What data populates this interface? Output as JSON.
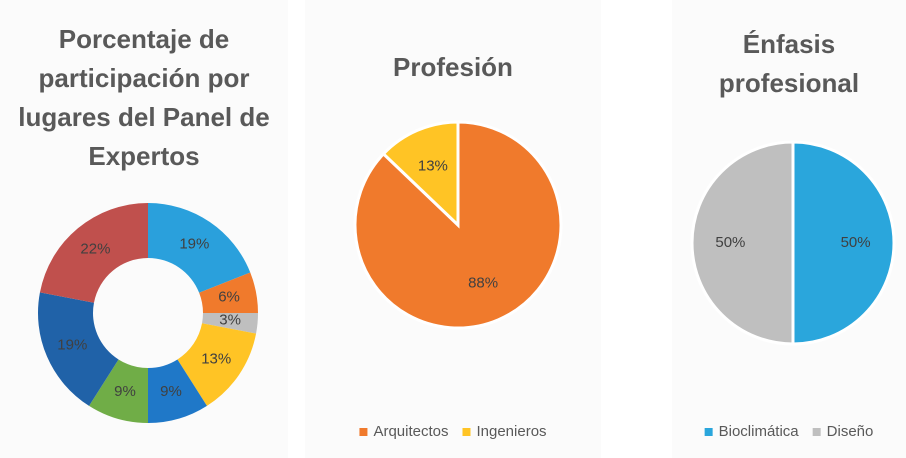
{
  "chart_data": [
    {
      "type": "doughnut",
      "title": "Porcentaje de participación por lugares del Panel de Expertos",
      "values": [
        19,
        6,
        3,
        13,
        9,
        9,
        19,
        22
      ],
      "value_labels": [
        "19%",
        "6%",
        "3%",
        "13%",
        "9%",
        "9%",
        "19%",
        "22%"
      ],
      "colors": [
        "#2aa0dc",
        "#f07a2c",
        "#bfbfbf",
        "#ffc425",
        "#1f78c8",
        "#70ad47",
        "#2062a8",
        "#c0504d"
      ]
    },
    {
      "type": "pie",
      "title": "Profesión",
      "categories": [
        "Arquitectos",
        "Ingenieros"
      ],
      "values": [
        88,
        13
      ],
      "value_labels": [
        "88%",
        "13%"
      ],
      "colors": [
        "#f07a2c",
        "#ffc425"
      ],
      "legend": "bottom"
    },
    {
      "type": "pie",
      "title": "Énfasis profesional",
      "categories": [
        "Bioclimática",
        "Diseño"
      ],
      "values": [
        50,
        50
      ],
      "value_labels": [
        "50%",
        "50%"
      ],
      "colors": [
        "#2aa6dc",
        "#bfbfbf"
      ],
      "legend": "bottom"
    }
  ]
}
